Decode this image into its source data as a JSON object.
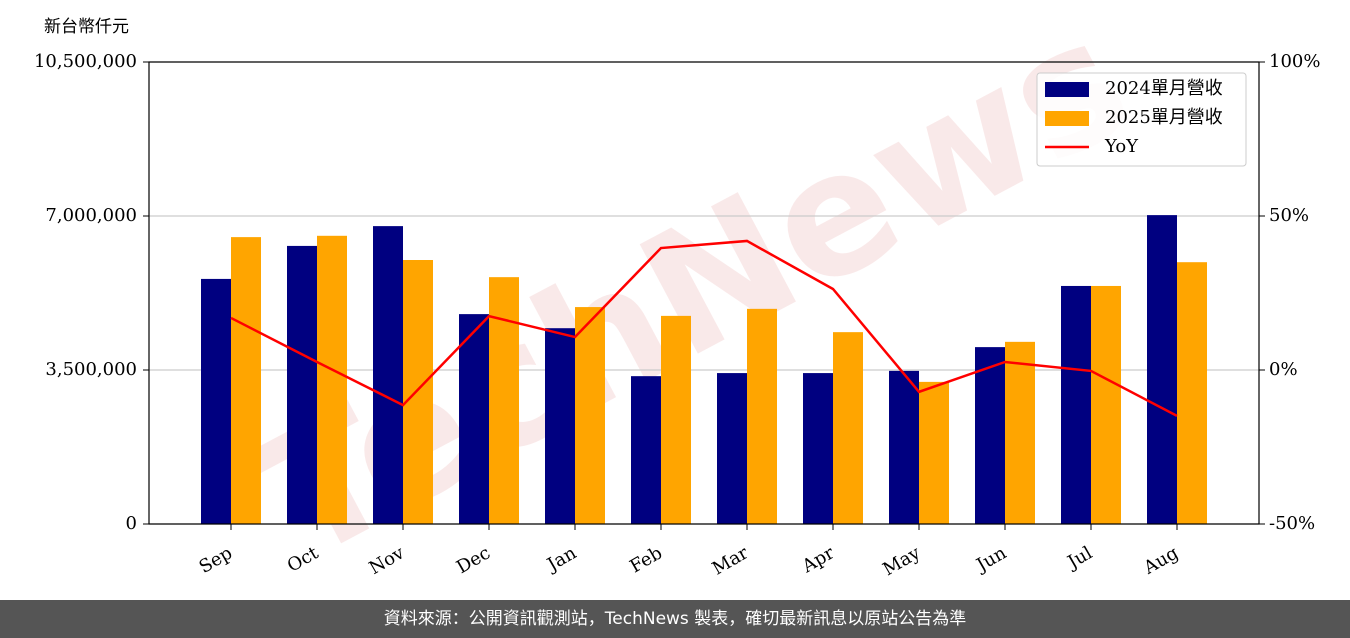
{
  "chart_data": {
    "type": "bar-line",
    "ylabel": "新台幣仟元",
    "watermark": "TechNews",
    "categories": [
      "Sep",
      "Oct",
      "Nov",
      "Dec",
      "Jan",
      "Feb",
      "Mar",
      "Apr",
      "May",
      "Jun",
      "Jul",
      "Aug"
    ],
    "series": [
      {
        "name": "2024單月營收",
        "type": "bar",
        "color": "#000080",
        "values": [
          5570000,
          6320000,
          6770000,
          4770000,
          4450000,
          3360000,
          3430000,
          3430000,
          3480000,
          4020000,
          5410000,
          7020000
        ]
      },
      {
        "name": "2025單月營收",
        "type": "bar",
        "color": "#ffa500",
        "values": [
          6520000,
          6550000,
          6000000,
          5610000,
          4930000,
          4730000,
          4890000,
          4360000,
          3230000,
          4140000,
          5410000,
          5950000
        ]
      },
      {
        "name": "YoY",
        "type": "line",
        "axis": "y2",
        "color": "#ff0000",
        "values": [
          16.9,
          2.6,
          -11.4,
          17.5,
          10.7,
          39.6,
          41.9,
          26.3,
          -7.1,
          2.6,
          -0.3,
          -14.9
        ]
      }
    ],
    "ylim": [
      0,
      10500000
    ],
    "yticks": [
      0,
      {
        "value": 3500000,
        "label": "3,500,000"
      },
      {
        "value": 7000000,
        "label": "7,000,000"
      },
      {
        "value": 10500000,
        "label": "10,500,000"
      }
    ],
    "y2lim": [
      -50,
      100
    ],
    "y2ticks": [
      {
        "value": -50,
        "label": "-50%"
      },
      {
        "value": 0,
        "label": "0%"
      },
      {
        "value": 50,
        "label": "50%"
      },
      {
        "value": 100,
        "label": "100%"
      }
    ],
    "grid": true,
    "legend": "upper right"
  },
  "footer": "資料來源：公開資訊觀測站，TechNews 製表，確切最新訊息以原站公告為準"
}
